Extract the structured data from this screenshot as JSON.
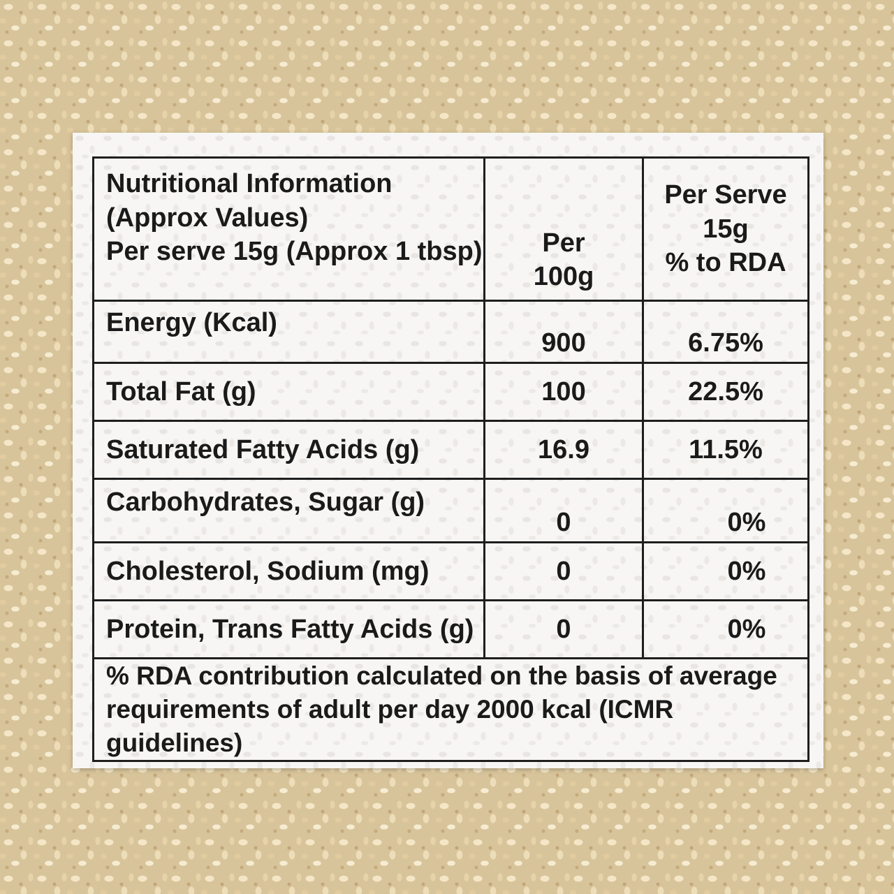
{
  "table": {
    "header": {
      "title_lines": [
        "Nutritional Information",
        "(Approx Values)",
        "Per serve 15g (Approx 1 tbsp)"
      ],
      "per100_lines": [
        "Per",
        "100g"
      ],
      "perserve_lines": [
        "Per Serve",
        "15g",
        "% to RDA"
      ]
    },
    "rows": [
      {
        "nutrient": "Energy (Kcal)",
        "per_100g": "900",
        "rda": "6.75%"
      },
      {
        "nutrient": "Total Fat (g)",
        "per_100g": "100",
        "rda": "22.5%"
      },
      {
        "nutrient": "Saturated Fatty Acids (g)",
        "per_100g": "16.9",
        "rda": "11.5%"
      },
      {
        "nutrient": "Carbohydrates, Sugar (g)",
        "per_100g": "0",
        "rda": "0%"
      },
      {
        "nutrient": "Cholesterol, Sodium (mg)",
        "per_100g": "0",
        "rda": "0%"
      },
      {
        "nutrient": "Protein, Trans Fatty Acids (g)",
        "per_100g": "0",
        "rda": "0%"
      }
    ],
    "footnote_lines": [
      "% RDA contribution calculated on the basis of average",
      "requirements of adult per day 2000 kcal (ICMR guidelines)"
    ]
  },
  "colors": {
    "card_background": "#f7f6f4",
    "border": "#1e1e1e",
    "text": "#1a1a1a",
    "seed_background": "#d8c49a"
  }
}
